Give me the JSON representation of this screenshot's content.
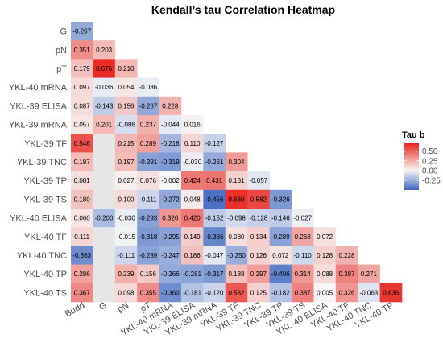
{
  "chart_data": {
    "type": "heatmap",
    "title": "Kendall’s tau Correlation Heatmap",
    "x_labels": [
      "Budd",
      "G",
      "pN",
      "pT",
      "YKL-40 mRNA",
      "YKL-39 ELISA",
      "YKL-39 mRNA",
      "YKL-39 TF",
      "YKL-39 TNC",
      "YKL-39 TP",
      "YKL-39 TS",
      "YKL-40 ELISA",
      "YKL-40 TF",
      "YKL-40 TNC",
      "YKL-40 TP"
    ],
    "y_labels": [
      "G",
      "pN",
      "pT",
      "YKL-40 mRNA",
      "YKL-39 ELISA",
      "YKL-39 mRNA",
      "YKL-39 TF",
      "YKL-39 TNC",
      "YKL-39 TP",
      "YKL-39 TS",
      "YKL-40 ELISA",
      "YKL-40 TF",
      "YKL-40 TNC",
      "YKL-40 TP",
      "YKL-40 TS"
    ],
    "rows": [
      [
        -0.267
      ],
      [
        0.351,
        0.203
      ],
      [
        0.179,
        0.676,
        0.21
      ],
      [
        0.097,
        -0.036,
        0.054,
        -0.036
      ],
      [
        0.087,
        -0.143,
        0.156,
        -0.267,
        0.228
      ],
      [
        0.057,
        0.201,
        -0.086,
        0.237,
        -0.044,
        0.016
      ],
      [
        0.548,
        null,
        0.215,
        0.289,
        -0.218,
        0.11,
        -0.127
      ],
      [
        0.197,
        null,
        0.197,
        -0.291,
        -0.319,
        -0.03,
        -0.261,
        0.304
      ],
      [
        0.081,
        null,
        0.027,
        0.076,
        -0.002,
        0.424,
        0.431,
        0.131,
        -0.057
      ],
      [
        0.18,
        null,
        0.1,
        -0.111,
        -0.272,
        0.048,
        -0.456,
        0.66,
        0.582,
        -0.326
      ],
      [
        0.06,
        -0.2,
        -0.03,
        -0.293,
        0.32,
        0.42,
        -0.152,
        -0.098,
        -0.128,
        -0.146,
        -0.027
      ],
      [
        0.111,
        null,
        -0.015,
        -0.318,
        -0.295,
        0.149,
        -0.386,
        0.08,
        0.134,
        -0.289,
        0.268,
        0.072
      ],
      [
        -0.363,
        null,
        -0.111,
        -0.289,
        -0.247,
        0.186,
        -0.047,
        -0.25,
        0.126,
        0.072,
        -0.11,
        0.128,
        0.228
      ],
      [
        0.286,
        null,
        0.239,
        0.156,
        -0.266,
        -0.281,
        -0.317,
        0.188,
        0.297,
        -0.406,
        0.314,
        0.088,
        0.387,
        0.271
      ],
      [
        0.367,
        null,
        0.098,
        0.355,
        -0.36,
        -0.181,
        -0.12,
        0.532,
        0.125,
        -0.182,
        0.387,
        0.005,
        0.326,
        -0.063,
        0.636
      ]
    ],
    "legend": {
      "title": "Tau b",
      "ticks": [
        0.5,
        0.25,
        0.0,
        -0.25
      ],
      "tick_labels": [
        "0.50",
        "0.25",
        "0.00",
        "-0.25"
      ],
      "range": [
        -0.5,
        0.7
      ],
      "placement": "right"
    },
    "colors": {
      "low": "#3b64bf",
      "mid": "#f7f7f7",
      "high": "#e8241c",
      "na": "#e6e6e6"
    }
  }
}
